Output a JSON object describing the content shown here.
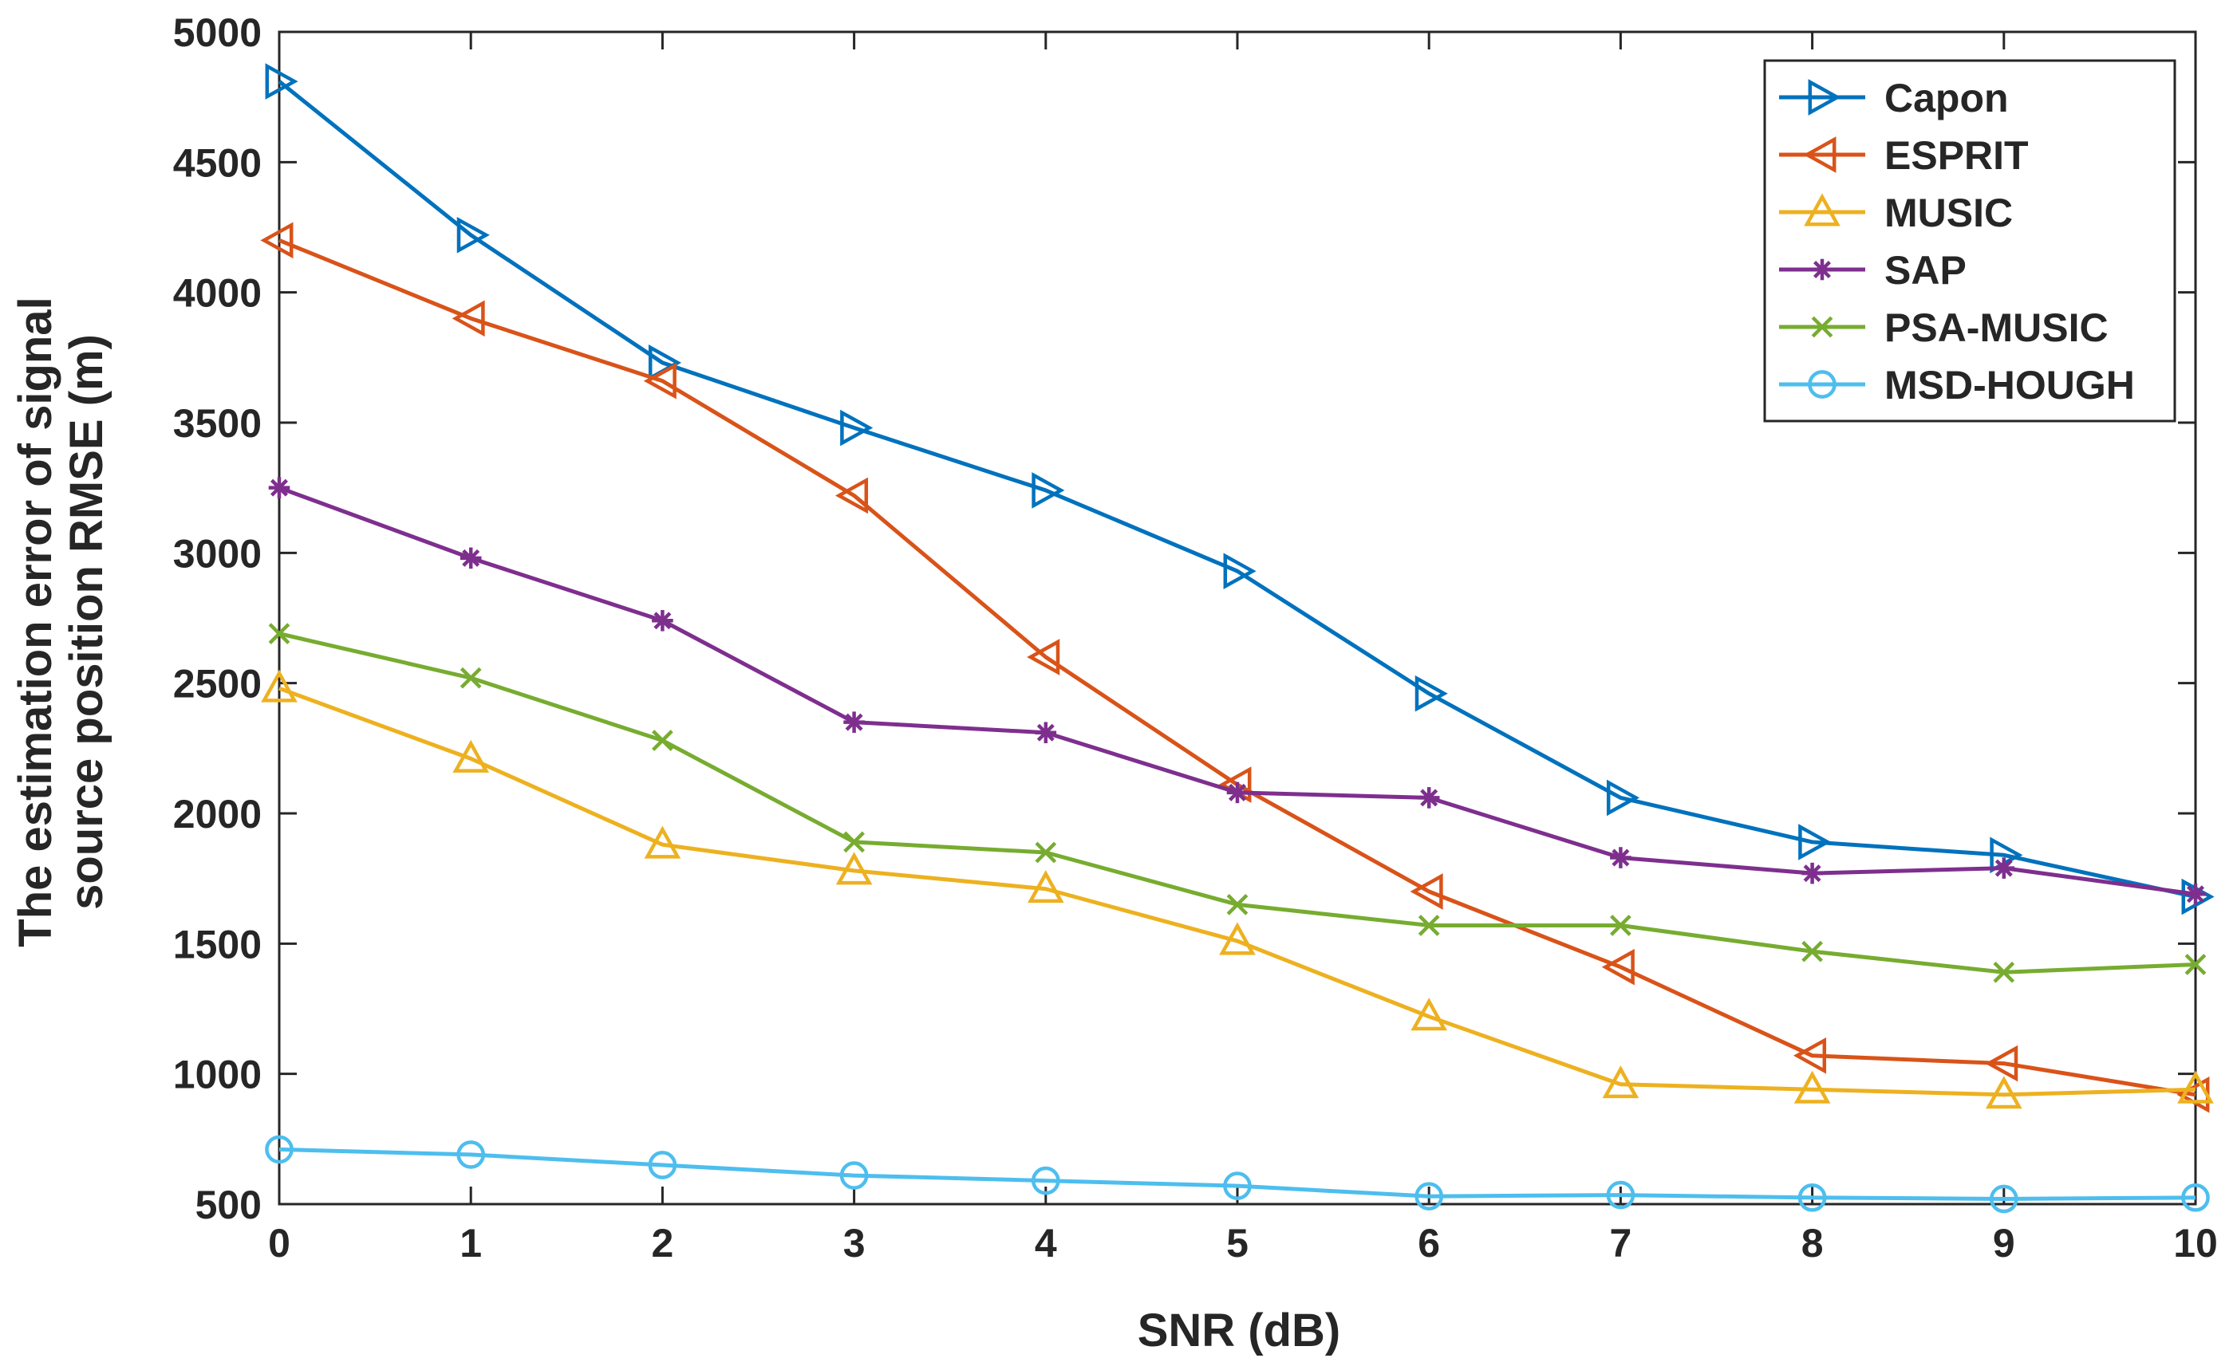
{
  "chart_data": {
    "type": "line",
    "title": "",
    "xlabel": "SNR (dB)",
    "ylabel_lines": [
      "The estimation error of signal",
      "source position RMSE (m)"
    ],
    "x": [
      0,
      1,
      2,
      3,
      4,
      5,
      6,
      7,
      8,
      9,
      10
    ],
    "xlim": [
      0,
      10
    ],
    "ylim": [
      500,
      5000
    ],
    "xticks": [
      "0",
      "1",
      "2",
      "3",
      "4",
      "5",
      "6",
      "7",
      "8",
      "9",
      "10"
    ],
    "yticks": [
      "500",
      "1000",
      "1500",
      "2000",
      "2500",
      "3000",
      "3500",
      "4000",
      "4500",
      "5000"
    ],
    "grid": false,
    "legend_position": "top-right",
    "series": [
      {
        "name": "Capon",
        "color": "#0072BD",
        "marker": "triangle-right",
        "values": [
          4810,
          4220,
          3730,
          3480,
          3240,
          2930,
          2460,
          2060,
          1890,
          1840,
          1680
        ]
      },
      {
        "name": "ESPRIT",
        "color": "#D95319",
        "marker": "triangle-left",
        "values": [
          4200,
          3900,
          3660,
          3220,
          2600,
          2110,
          1700,
          1410,
          1070,
          1040,
          920
        ]
      },
      {
        "name": "MUSIC",
        "color": "#EDB120",
        "marker": "triangle-up",
        "values": [
          2480,
          2210,
          1880,
          1780,
          1710,
          1510,
          1220,
          960,
          940,
          920,
          940
        ]
      },
      {
        "name": "SAP",
        "color": "#7E2F8E",
        "marker": "asterisk",
        "values": [
          3250,
          2980,
          2740,
          2350,
          2310,
          2080,
          2060,
          1830,
          1770,
          1790,
          1690
        ]
      },
      {
        "name": "PSA-MUSIC",
        "color": "#77AC30",
        "marker": "x",
        "values": [
          2690,
          2520,
          2280,
          1890,
          1850,
          1650,
          1570,
          1570,
          1470,
          1390,
          1420
        ]
      },
      {
        "name": "MSD-HOUGH",
        "color": "#4DBEEE",
        "marker": "circle",
        "values": [
          710,
          690,
          650,
          610,
          590,
          570,
          530,
          535,
          525,
          520,
          525
        ]
      }
    ]
  }
}
